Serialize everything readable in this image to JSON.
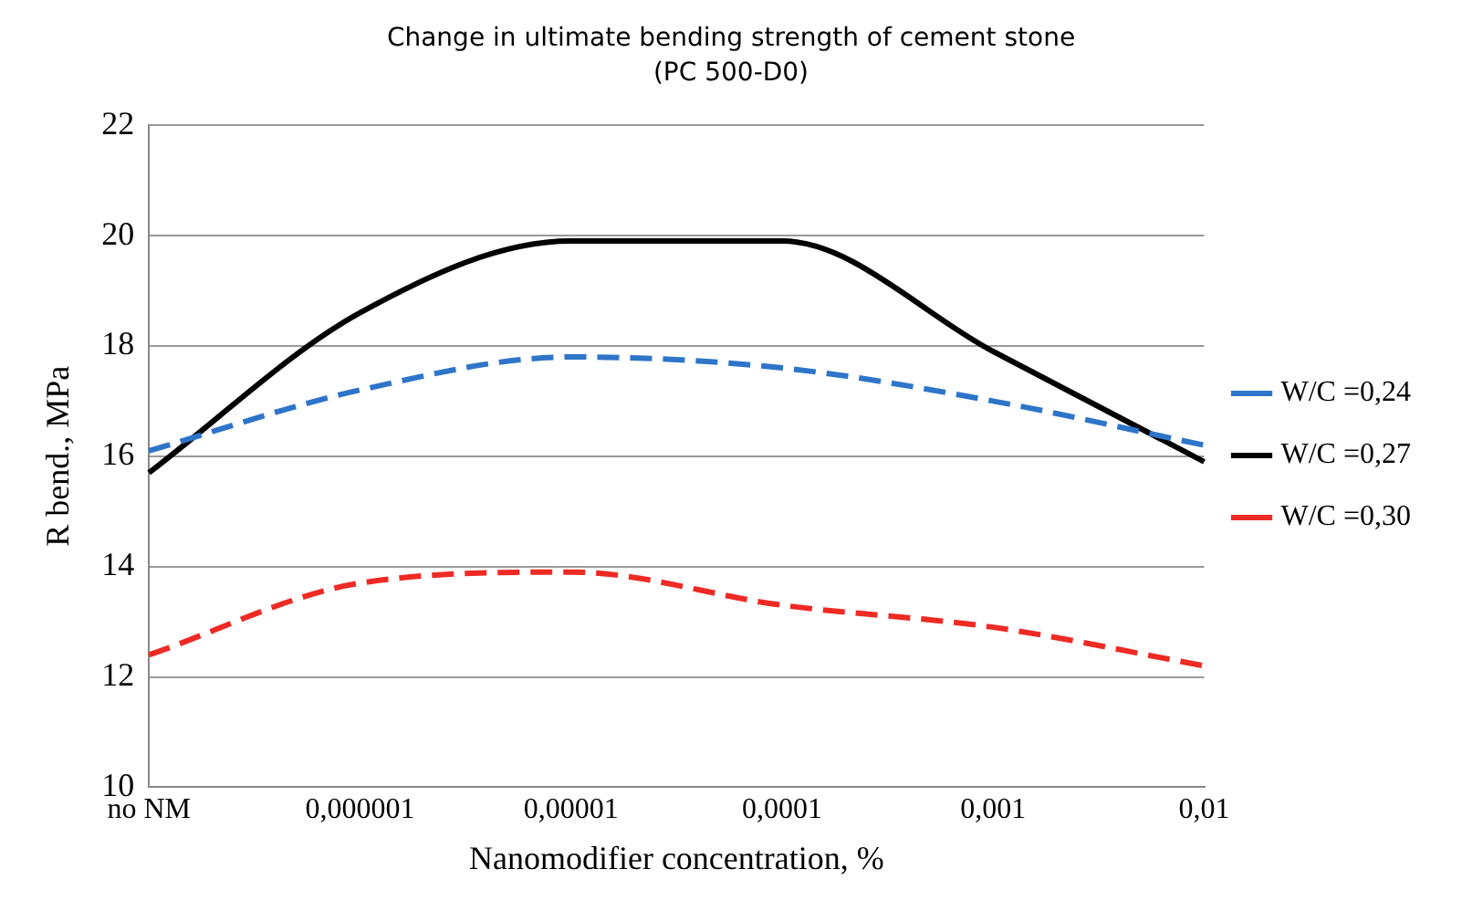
{
  "chart_data": {
    "type": "line",
    "title": "Change in ultimate bending strength of cement stone",
    "subtitle": "(PC 500-D0)",
    "xlabel": "Nanomodifier concentration, %",
    "ylabel": "R bend., MPa",
    "categories": [
      "no NM",
      "0,000001",
      "0,00001",
      "0,0001",
      "0,001",
      "0,01"
    ],
    "series": [
      {
        "name": "W/C =0,24",
        "color": "#2e75c9",
        "line_style": "dashed",
        "values": [
          16.1,
          17.2,
          17.8,
          17.6,
          17.0,
          16.2
        ]
      },
      {
        "name": "W/C =0,27",
        "color": "#000000",
        "line_style": "solid",
        "values": [
          15.7,
          18.6,
          19.9,
          19.9,
          17.9,
          15.9
        ]
      },
      {
        "name": "W/C =0,30",
        "color": "#ee2a24",
        "line_style": "dashed",
        "values": [
          12.4,
          13.7,
          13.9,
          13.3,
          12.9,
          12.2
        ]
      }
    ],
    "ylim": [
      10,
      22
    ],
    "yticks": [
      10,
      12,
      14,
      16,
      18,
      20,
      22
    ],
    "grid": "y",
    "legend": "right",
    "marker": "none"
  }
}
